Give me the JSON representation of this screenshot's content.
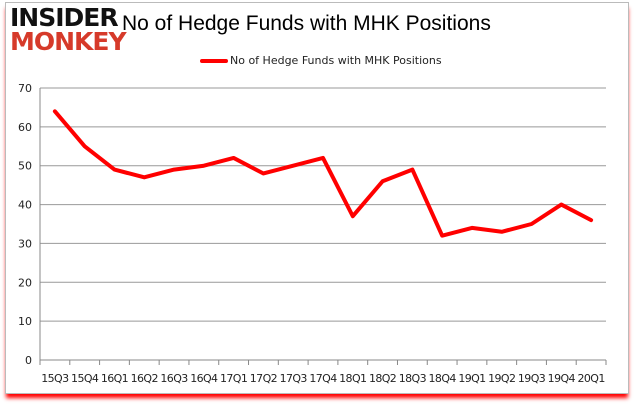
{
  "logo": {
    "line1": "INSIDER",
    "line2": "MONKEY"
  },
  "chart_data": {
    "type": "line",
    "title": "No of Hedge Funds with MHK Positions",
    "categories": [
      "15Q3",
      "15Q4",
      "16Q1",
      "16Q2",
      "16Q3",
      "16Q4",
      "17Q1",
      "17Q2",
      "17Q3",
      "17Q4",
      "18Q1",
      "18Q2",
      "18Q3",
      "18Q4",
      "19Q1",
      "19Q2",
      "19Q3",
      "19Q4",
      "20Q1"
    ],
    "series": [
      {
        "name": "No of Hedge Funds with MHK Positions",
        "values": [
          64,
          55,
          49,
          47,
          49,
          50,
          52,
          48,
          50,
          52,
          37,
          46,
          49,
          32,
          34,
          33,
          35,
          40,
          36
        ],
        "color": "#ff0000"
      }
    ],
    "ylim": [
      0,
      70
    ],
    "yticks": [
      0,
      10,
      20,
      30,
      40,
      50,
      60,
      70
    ],
    "grid": true,
    "legend": "top-center"
  }
}
